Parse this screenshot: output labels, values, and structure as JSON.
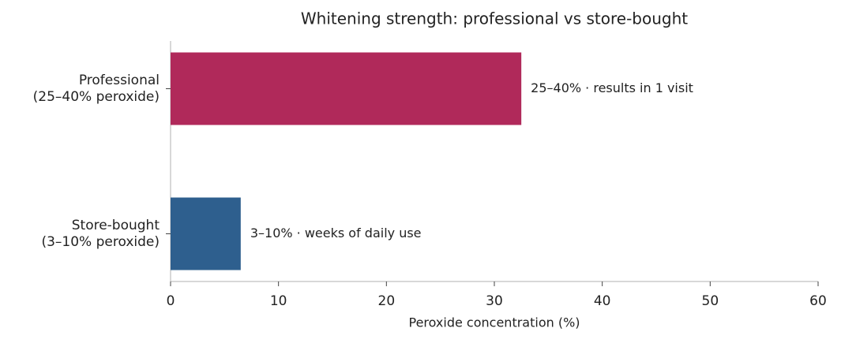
{
  "chart_data": {
    "type": "barh",
    "title": "Whitening strength: professional vs store-bought",
    "xlabel": "Peroxide concentration (%)",
    "categories": [
      "Professional\n(25–40% peroxide)",
      "Store-bought\n(3–10% peroxide)"
    ],
    "values": [
      32.5,
      6.5
    ],
    "colors": [
      "#b0295a",
      "#2e5f8e"
    ],
    "annotations": [
      "25–40% · results in 1 visit",
      "3–10% · weeks of daily use"
    ],
    "xlim": [
      0,
      60
    ],
    "xticks": [
      0,
      10,
      20,
      30,
      40,
      50,
      60
    ],
    "grid": false
  }
}
